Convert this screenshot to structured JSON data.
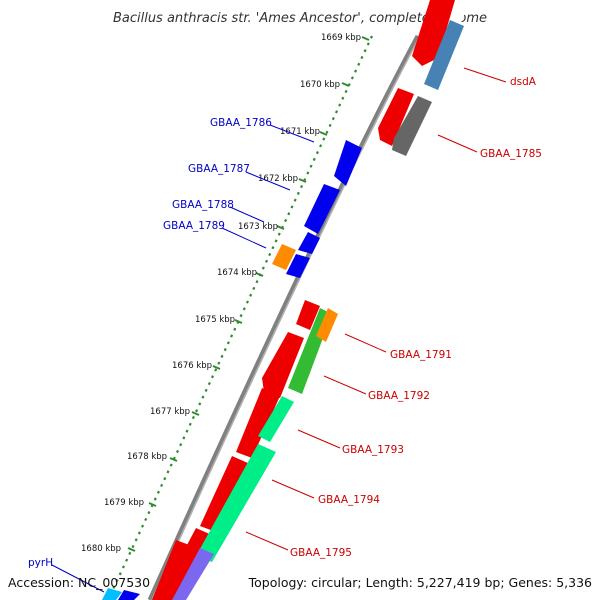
{
  "title": "Bacillus anthracis str. 'Ames Ancestor', complete genome",
  "footer": {
    "accession": "Accession: NC_007530",
    "stats": "Topology: circular; Length: 5,227,419 bp; Genes: 5,336"
  },
  "colors": {
    "backbone": "#808080",
    "forward_label": "#cc0000",
    "reverse_label": "#0000cc",
    "gene_red": "#ee0000",
    "gene_blue": "#0000ee",
    "gene_orange": "#ff8c00",
    "gene_green": "#33bb33",
    "gene_mint": "#00ee88",
    "gene_gray": "#666666",
    "gene_steelblue": "#4682b4",
    "gene_slateblue": "#7b68ee",
    "gene_cyan": "#00bfff",
    "tick_green": "#2e8b2e"
  },
  "ticks": [
    "1669 kbp",
    "1670 kbp",
    "1671 kbp",
    "1672 kbp",
    "1673 kbp",
    "1674 kbp",
    "1675 kbp",
    "1676 kbp",
    "1677 kbp",
    "1678 kbp",
    "1679 kbp",
    "1680 kbp"
  ],
  "gene_labels": {
    "dsdA": "dsdA",
    "GBAA_1785": "GBAA_1785",
    "GBAA_1786": "GBAA_1786",
    "GBAA_1787": "GBAA_1787",
    "GBAA_1788": "GBAA_1788",
    "GBAA_1789": "GBAA_1789",
    "GBAA_1791": "GBAA_1791",
    "GBAA_1792": "GBAA_1792",
    "GBAA_1793": "GBAA_1793",
    "GBAA_1794": "GBAA_1794",
    "GBAA_1795": "GBAA_1795",
    "pyrH": "pyrH"
  }
}
